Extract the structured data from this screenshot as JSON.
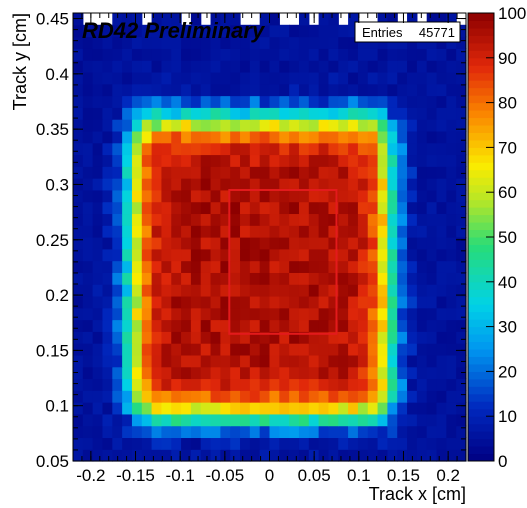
{
  "chart_data": {
    "type": "heatmap",
    "title": "RD42 Preliminary",
    "xlabel": "Track x [cm]",
    "ylabel": "Track y [cm]",
    "xlim": [
      -0.22,
      0.22
    ],
    "ylim": [
      0.05,
      0.455
    ],
    "x_ticks": [
      -0.2,
      -0.15,
      -0.1,
      -0.05,
      0,
      0.05,
      0.1,
      0.15,
      0.2
    ],
    "y_ticks": [
      0.05,
      0.1,
      0.15,
      0.2,
      0.25,
      0.3,
      0.35,
      0.4,
      0.45
    ],
    "z_range": [
      0,
      100
    ],
    "z_ticks": [
      0,
      10,
      20,
      30,
      40,
      50,
      60,
      70,
      80,
      90,
      100
    ],
    "colormap": "rainbow (blue-cyan-green-yellow-red-darkred)",
    "bins": {
      "nx": 40,
      "ny": 38,
      "x_range": [
        -0.22,
        0.22
      ],
      "y_range": [
        0.05,
        0.455
      ],
      "plateau_value": 95,
      "sensor_region": {
        "x": [
          -0.155,
          0.135
        ],
        "y": [
          0.09,
          0.36
        ]
      },
      "edge_width": 0.022,
      "background_value": 3
    },
    "stats_box": {
      "label": "Entries",
      "value": "45771"
    },
    "fiducial_region": {
      "x": [
        -0.045,
        0.075
      ],
      "y": [
        0.165,
        0.295
      ],
      "color": "#e31a1c"
    },
    "grid": false,
    "legend": "stats box top-right"
  }
}
